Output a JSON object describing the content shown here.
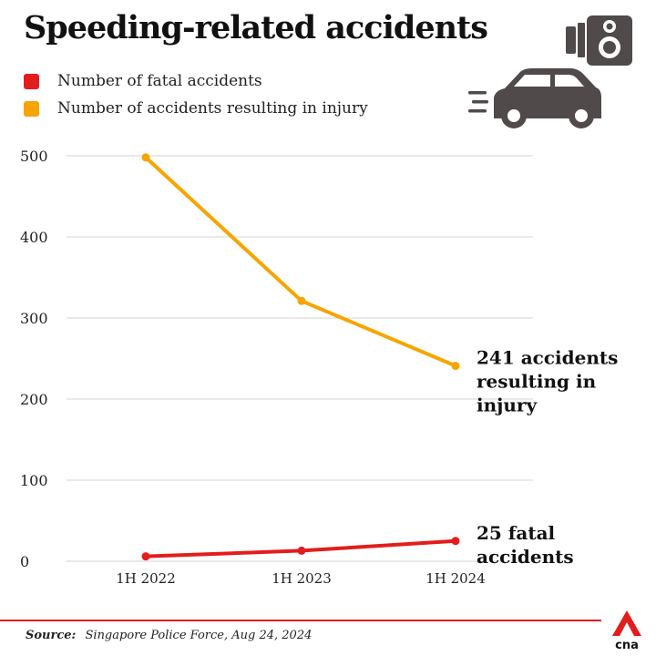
{
  "header": {
    "title": "Speeding-related accidents"
  },
  "legend": [
    {
      "label": "Number of fatal accidents",
      "color": "#e31d1d"
    },
    {
      "label": "Number of accidents resulting in injury",
      "color": "#f6a500"
    }
  ],
  "chart_data": {
    "type": "line",
    "categories": [
      "1H 2022",
      "1H 2023",
      "1H 2024"
    ],
    "series": [
      {
        "name": "Number of accidents resulting in injury",
        "color": "#f6a500",
        "values": [
          498,
          321,
          241
        ]
      },
      {
        "name": "Number of fatal accidents",
        "color": "#e31d1d",
        "values": [
          6,
          13,
          25
        ]
      }
    ],
    "ylim": [
      0,
      500
    ],
    "yticks": [
      0,
      100,
      200,
      300,
      400,
      500
    ],
    "grid": true,
    "annotations": [
      {
        "series": 0,
        "lines": [
          "241 accidents",
          "resulting in",
          "injury"
        ]
      },
      {
        "series": 1,
        "lines": [
          "25 fatal",
          "accidents"
        ]
      }
    ]
  },
  "footer": {
    "source_label": "Source:",
    "source_text": "Singapore Police Force, Aug 24, 2024"
  },
  "icons": {
    "camera": "speed-camera-icon",
    "car": "speeding-car-icon",
    "logo": "cna-logo-icon"
  },
  "colors": {
    "icon_gray": "#504a4a",
    "accent_red": "#e31d1d"
  }
}
